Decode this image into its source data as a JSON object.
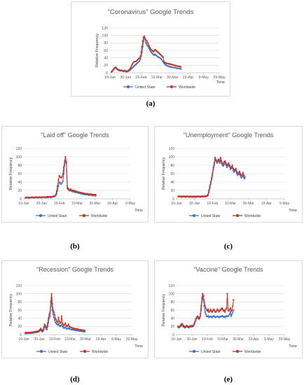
{
  "colors": {
    "us": "#4472C4",
    "ww": "#C0392B"
  },
  "chart_data": [
    {
      "id": "a",
      "type": "line",
      "title": "\"Coronavirus\" Google Trends",
      "xlabel": "Time",
      "ylabel": "Relative Frequency",
      "yticks": [
        0,
        20,
        40,
        60,
        80,
        100,
        120
      ],
      "ylim": [
        0,
        120
      ],
      "xticks": [
        "10-Jan",
        "30-Jan",
        "19-Feb",
        "10-Mar",
        "30-Mar",
        "19-Apr",
        "9-May",
        "29-May"
      ],
      "legend": "bottom",
      "series": [
        {
          "name": "United State",
          "color": "#4472C4",
          "x_start": 2,
          "values": [
            2,
            4,
            7,
            10,
            12,
            14,
            13,
            10,
            8,
            7,
            6,
            6,
            5,
            6,
            5,
            4,
            4,
            5,
            4,
            3,
            3,
            4,
            5,
            6,
            8,
            10,
            12,
            14,
            16,
            18,
            20,
            22,
            24,
            26,
            28,
            30,
            32,
            36,
            45,
            55,
            70,
            85,
            97,
            90,
            80,
            76,
            73,
            70,
            66,
            62,
            58,
            55,
            52,
            50,
            48,
            47,
            50,
            47,
            45,
            43,
            42,
            41,
            40,
            38,
            36,
            32,
            30,
            26,
            24,
            22,
            20,
            19,
            18,
            17,
            17,
            16,
            16,
            15,
            15,
            14,
            14,
            14,
            13,
            13,
            12,
            12,
            12,
            11,
            11,
            10
          ]
        },
        {
          "name": "Worldwide",
          "color": "#C0392B",
          "x_start": 2,
          "values": [
            3,
            5,
            8,
            11,
            13,
            15,
            14,
            11,
            9,
            8,
            7,
            7,
            6,
            7,
            6,
            5,
            5,
            6,
            5,
            4,
            4,
            5,
            7,
            9,
            12,
            16,
            20,
            24,
            28,
            30,
            30,
            30,
            32,
            34,
            36,
            38,
            40,
            44,
            55,
            70,
            85,
            95,
            98,
            92,
            88,
            86,
            82,
            78,
            72,
            68,
            64,
            62,
            60,
            58,
            56,
            60,
            62,
            60,
            58,
            55,
            55,
            52,
            50,
            48,
            46,
            44,
            42,
            30,
            28,
            27,
            26,
            25,
            25,
            24,
            24,
            23,
            23,
            22,
            22,
            21,
            20,
            20,
            19,
            19,
            18,
            18,
            17,
            17,
            16,
            16
          ]
        }
      ]
    },
    {
      "id": "b",
      "type": "line",
      "title": "\"Laid off\" Google Trends",
      "xlabel": "Time",
      "ylabel": "Relative Frequency",
      "yticks": [
        0,
        20,
        40,
        60,
        80,
        100,
        120
      ],
      "ylim": [
        0,
        120
      ],
      "xticks": [
        "10-Jan",
        "30-Jan",
        "19-Feb",
        "10-Mar",
        "30-Mar",
        "19-Apr",
        "9-May"
      ],
      "legend": "bottom",
      "series": [
        {
          "name": "United State",
          "color": "#4472C4",
          "x_start": 2,
          "values": [
            2,
            3,
            3,
            3,
            2,
            3,
            3,
            4,
            3,
            3,
            3,
            3,
            4,
            3,
            3,
            3,
            4,
            3,
            3,
            4,
            3,
            4,
            3,
            3,
            4,
            3,
            4,
            4,
            3,
            4,
            4,
            5,
            5,
            6,
            8,
            12,
            20,
            30,
            40,
            38,
            35,
            38,
            42,
            60,
            80,
            90,
            88,
            30,
            22,
            20,
            19,
            20,
            18,
            17,
            18,
            16,
            15,
            16,
            15,
            14,
            14,
            13,
            13,
            12,
            12,
            11,
            11,
            10,
            10,
            10,
            10,
            9,
            9,
            9,
            9,
            8,
            8,
            8,
            8,
            7
          ]
        },
        {
          "name": "Worldwide",
          "color": "#C0392B",
          "x_start": 2,
          "values": [
            3,
            3,
            3,
            3,
            3,
            3,
            3,
            4,
            4,
            3,
            3,
            4,
            4,
            4,
            3,
            4,
            4,
            4,
            4,
            4,
            4,
            4,
            4,
            4,
            5,
            5,
            5,
            5,
            5,
            5,
            5,
            6,
            6,
            7,
            10,
            18,
            30,
            45,
            55,
            52,
            50,
            52,
            58,
            75,
            90,
            100,
            85,
            25,
            25,
            22,
            22,
            23,
            20,
            20,
            20,
            19,
            18,
            18,
            17,
            16,
            16,
            15,
            15,
            14,
            14,
            13,
            13,
            12,
            12,
            12,
            12,
            11,
            11,
            11,
            11,
            10,
            10,
            10,
            10,
            10
          ]
        }
      ]
    },
    {
      "id": "c",
      "type": "line",
      "title": "\"Unemployment\" Google Trends",
      "xlabel": "Time",
      "ylabel": "Relative Frequency",
      "yticks": [
        0,
        20,
        40,
        60,
        80,
        100,
        120
      ],
      "ylim": [
        0,
        120
      ],
      "xticks": [
        "10-Jan",
        "30-Jan",
        "19-Feb",
        "10-Mar",
        "30-Mar",
        "19-Apr",
        "9-May"
      ],
      "legend": "bottom",
      "series": [
        {
          "name": "United State",
          "color": "#4472C4",
          "x_start": 2,
          "values": [
            5,
            5,
            5,
            5,
            4,
            5,
            5,
            5,
            4,
            5,
            5,
            5,
            4,
            5,
            4,
            5,
            4,
            5,
            4,
            5,
            4,
            5,
            5,
            5,
            4,
            5,
            5,
            5,
            5,
            5,
            5,
            6,
            6,
            8,
            15,
            25,
            35,
            45,
            55,
            70,
            80,
            95,
            90,
            85,
            88,
            90,
            85,
            92,
            85,
            80,
            78,
            82,
            86,
            80,
            75,
            78,
            80,
            76,
            70,
            72,
            75,
            68,
            64,
            66,
            68,
            60,
            56,
            58,
            60,
            55,
            50,
            52,
            56,
            50,
            48
          ]
        },
        {
          "name": "Worldwide",
          "color": "#C0392B",
          "x_start": 2,
          "values": [
            6,
            6,
            6,
            6,
            5,
            6,
            6,
            6,
            5,
            6,
            6,
            6,
            5,
            6,
            5,
            6,
            5,
            6,
            5,
            6,
            5,
            6,
            6,
            6,
            5,
            6,
            6,
            6,
            6,
            6,
            6,
            7,
            7,
            10,
            20,
            30,
            40,
            50,
            60,
            75,
            85,
            98,
            92,
            88,
            92,
            94,
            88,
            98,
            90,
            85,
            82,
            88,
            90,
            85,
            80,
            82,
            85,
            80,
            74,
            76,
            80,
            72,
            68,
            70,
            72,
            65,
            60,
            62,
            65,
            60,
            55,
            58,
            62,
            56,
            52
          ]
        }
      ]
    },
    {
      "id": "d",
      "type": "line",
      "title": "\"Recession\" Google Trends",
      "xlabel": "Time",
      "ylabel": "Relative Frequency",
      "yticks": [
        0,
        20,
        40,
        60,
        80,
        100,
        120
      ],
      "ylim": [
        0,
        120
      ],
      "xticks": [
        "10-Jan",
        "30-Jan",
        "19-Feb",
        "10-Mar",
        "30-Mar",
        "19-Apr",
        "9-May",
        "29-May"
      ],
      "legend": "bottom",
      "series": [
        {
          "name": "United State",
          "color": "#4472C4",
          "x_start": 2,
          "values": [
            3,
            3,
            4,
            3,
            4,
            4,
            3,
            4,
            4,
            5,
            4,
            5,
            5,
            6,
            5,
            6,
            6,
            7,
            8,
            10,
            12,
            9,
            7,
            8,
            12,
            20,
            18,
            14,
            12,
            20,
            30,
            40,
            45,
            70,
            90,
            60,
            50,
            42,
            36,
            30,
            28,
            25,
            24,
            26,
            22,
            20,
            22,
            24,
            20,
            18,
            16,
            17,
            18,
            15,
            14,
            15,
            16,
            14,
            13,
            13,
            12,
            12,
            12,
            11,
            11,
            11,
            10,
            10,
            10,
            10,
            9,
            9,
            9,
            8,
            8,
            8,
            7,
            7
          ]
        },
        {
          "name": "Worldwide",
          "color": "#C0392B",
          "x_start": 2,
          "values": [
            5,
            5,
            5,
            5,
            5,
            5,
            5,
            5,
            6,
            6,
            6,
            6,
            7,
            7,
            7,
            8,
            8,
            9,
            10,
            12,
            15,
            12,
            10,
            12,
            18,
            25,
            22,
            18,
            18,
            28,
            40,
            50,
            55,
            80,
            100,
            75,
            60,
            55,
            48,
            40,
            36,
            32,
            30,
            42,
            32,
            28,
            30,
            45,
            28,
            25,
            22,
            25,
            28,
            22,
            20,
            22,
            25,
            20,
            18,
            18,
            17,
            16,
            16,
            15,
            15,
            14,
            14,
            14,
            13,
            13,
            12,
            12,
            12,
            11,
            11,
            11,
            10,
            10
          ]
        }
      ]
    },
    {
      "id": "e",
      "type": "line",
      "title": "\"Vaccine\" Google Trends",
      "xlabel": "Time",
      "ylabel": "Relative Frequency",
      "yticks": [
        0,
        20,
        40,
        60,
        80,
        100,
        120
      ],
      "ylim": [
        0,
        120
      ],
      "xticks": [
        "10-Jan",
        "30-Jan",
        "19-Feb",
        "10-Mar",
        "30-Mar",
        "19-Apr",
        "9-May",
        "29-May"
      ],
      "legend": "bottom",
      "series": [
        {
          "name": "United State",
          "color": "#4472C4",
          "x_start": 2,
          "values": [
            18,
            17,
            18,
            20,
            22,
            23,
            21,
            19,
            18,
            17,
            18,
            20,
            19,
            18,
            17,
            18,
            19,
            20,
            19,
            20,
            21,
            25,
            30,
            35,
            40,
            42,
            40,
            38,
            40,
            45,
            60,
            80,
            95,
            85,
            70,
            55,
            50,
            45,
            44,
            46,
            42,
            44,
            45,
            43,
            42,
            44,
            46,
            45,
            43,
            42,
            44,
            45,
            44,
            42,
            43,
            45,
            44,
            46,
            45,
            43,
            44,
            42,
            45,
            46,
            44,
            45,
            47,
            50,
            55,
            45,
            50,
            55,
            60
          ]
        },
        {
          "name": "Worldwide",
          "color": "#C0392B",
          "x_start": 2,
          "values": [
            20,
            19,
            20,
            22,
            25,
            27,
            24,
            22,
            20,
            19,
            20,
            22,
            21,
            20,
            19,
            20,
            21,
            22,
            21,
            22,
            23,
            28,
            32,
            38,
            42,
            45,
            43,
            40,
            42,
            50,
            70,
            90,
            100,
            95,
            80,
            70,
            65,
            60,
            58,
            62,
            55,
            58,
            62,
            58,
            55,
            58,
            62,
            60,
            56,
            55,
            58,
            62,
            60,
            56,
            58,
            62,
            60,
            65,
            62,
            58,
            60,
            55,
            62,
            65,
            100,
            60,
            58,
            62,
            65,
            58,
            60,
            70,
            85
          ]
        }
      ]
    }
  ],
  "captions": [
    "(a)",
    "(b)",
    "(c)",
    "(d)",
    "(e)"
  ]
}
